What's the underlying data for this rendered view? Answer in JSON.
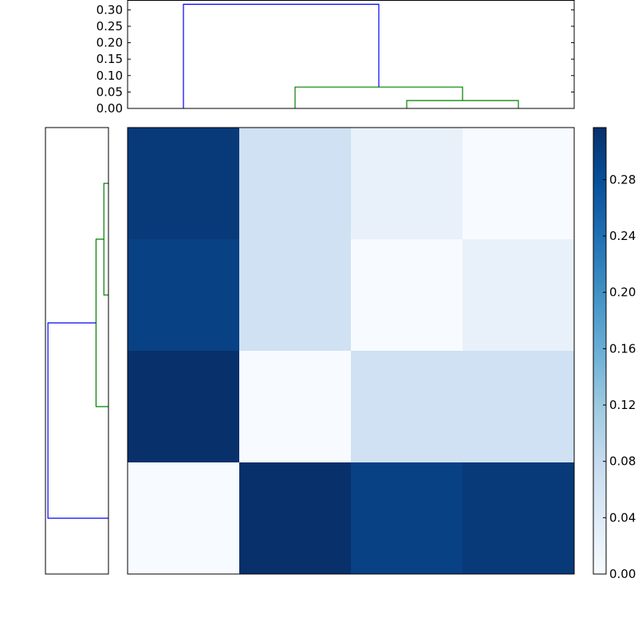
{
  "chart_data": [
    {
      "type": "dendrogram",
      "orientation": "top",
      "ylim": [
        0,
        0.33
      ],
      "yticks": [
        "0.00",
        "0.05",
        "0.10",
        "0.15",
        "0.20",
        "0.25",
        "0.30"
      ],
      "ytick_values": [
        0,
        0.05,
        0.1,
        0.15,
        0.2,
        0.25,
        0.3
      ],
      "xlim": [
        0,
        40
      ],
      "links": [
        {
          "icoord": [
            25,
            25,
            35,
            35
          ],
          "dcoord": [
            0,
            0.024,
            0.024,
            0
          ],
          "color": "#008000"
        },
        {
          "icoord": [
            15,
            15,
            30,
            30
          ],
          "dcoord": [
            0,
            0.065,
            0.065,
            0.024
          ],
          "color": "#008000"
        },
        {
          "icoord": [
            5,
            5,
            22.5,
            22.5
          ],
          "dcoord": [
            0,
            0.317,
            0.317,
            0.065
          ],
          "color": "#0000ff"
        }
      ]
    },
    {
      "type": "dendrogram",
      "orientation": "left",
      "xlim": [
        0,
        0.33
      ],
      "ylim": [
        0,
        40
      ],
      "links": [
        {
          "icoord": [
            5,
            5,
            15,
            15
          ],
          "dcoord": [
            0,
            0.024,
            0.024,
            0
          ],
          "color": "#008000"
        },
        {
          "icoord": [
            10,
            10,
            25,
            25
          ],
          "dcoord": [
            0.024,
            0.065,
            0.065,
            0
          ],
          "color": "#008000"
        },
        {
          "icoord": [
            17.5,
            17.5,
            35,
            35
          ],
          "dcoord": [
            0.065,
            0.317,
            0.317,
            0
          ],
          "color": "#0000ff"
        }
      ]
    },
    {
      "type": "heatmap",
      "colormap": "Blues",
      "vmin": 0,
      "vmax": 0.317,
      "values": [
        [
          0.305,
          0.065,
          0.024,
          0.0
        ],
        [
          0.297,
          0.065,
          0.0,
          0.024
        ],
        [
          0.317,
          0.0,
          0.065,
          0.065
        ],
        [
          0.0,
          0.317,
          0.297,
          0.305
        ]
      ],
      "colorbar": {
        "ticks": [
          "0.00",
          "0.04",
          "0.08",
          "0.12",
          "0.16",
          "0.20",
          "0.24",
          "0.28"
        ],
        "tick_values": [
          0,
          0.04,
          0.08,
          0.12,
          0.16,
          0.2,
          0.24,
          0.28
        ]
      }
    }
  ]
}
